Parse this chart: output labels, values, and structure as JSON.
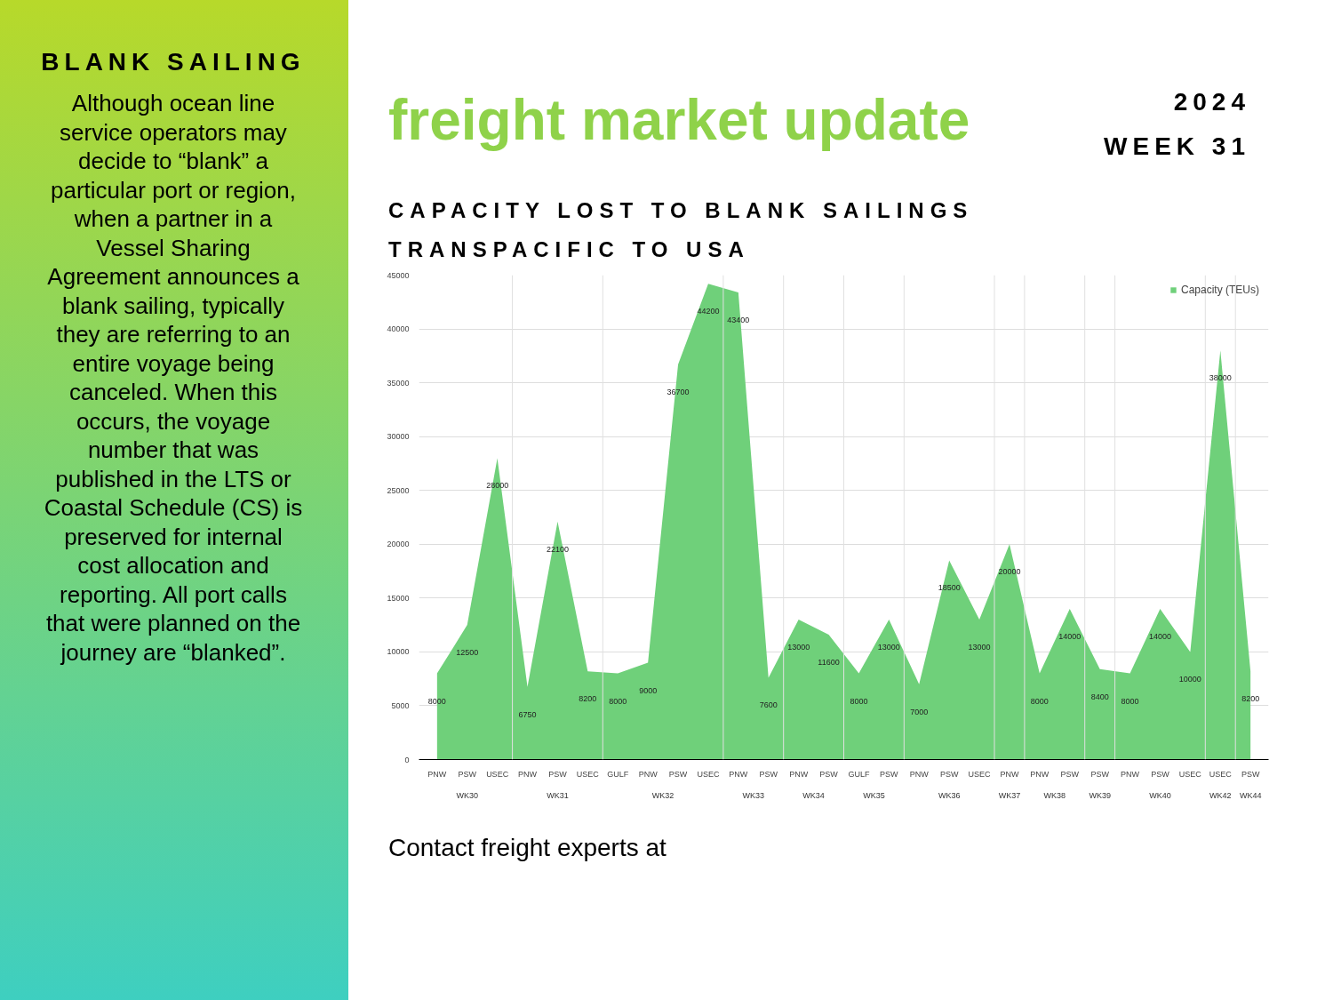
{
  "chart_data": {
    "type": "area",
    "title": "CAPACITY LOST TO BLANK SAILINGS",
    "subtitle": "TRANSPACIFIC TO USA",
    "annotations": [
      "freight market update",
      "2024",
      "WEEK 31",
      "BLANK SAILING",
      "Although ocean line service operators may decide to “blank” a particular port or region, when a partner in a Vessel Sharing Agreement announces a blank sailing, typically they are referring to an entire voyage being canceled. When this occurs, the voyage number that was published in the LTS or Coastal Schedule (CS) is preserved for internal cost allocation and reporting. All port calls that were planned on the journey are “blanked”.",
      "Contact freight experts at",
      "WK30",
      "WK31",
      "WK32",
      "WK33",
      "WK34",
      "WK35",
      "WK36",
      "WK37",
      "WK38",
      "WK39",
      "WK40",
      "WK42",
      "WK44"
    ],
    "categories": [
      "PNW",
      "PSW",
      "USEC",
      "PNW",
      "PSW",
      "USEC",
      "GULF",
      "PNW",
      "PSW",
      "USEC",
      "PNW",
      "PSW",
      "PNW",
      "PSW",
      "GULF",
      "PSW",
      "PNW",
      "PSW",
      "USEC",
      "PNW",
      "PNW",
      "PSW",
      "PSW",
      "PNW",
      "PSW",
      "USEC",
      "USEC",
      "PSW"
    ],
    "series": [
      {
        "name": "Capacity (TEUs)",
        "color": "#6fd07a",
        "values": [
          8000,
          12500,
          28000,
          6750,
          22100,
          8200,
          8000,
          9000,
          36700,
          44200,
          43400,
          7600,
          13000,
          11600,
          8000,
          13000,
          7000,
          18500,
          13000,
          20000,
          8000,
          14000,
          8400,
          8000,
          14000,
          10000,
          38000,
          8200
        ]
      }
    ],
    "ylim": [
      0,
      45000
    ],
    "yticks": [
      0,
      5000,
      10000,
      15000,
      20000,
      25000,
      30000,
      35000,
      40000,
      45000
    ],
    "grid": "y",
    "legend": "top right",
    "data_labels": true
  }
}
